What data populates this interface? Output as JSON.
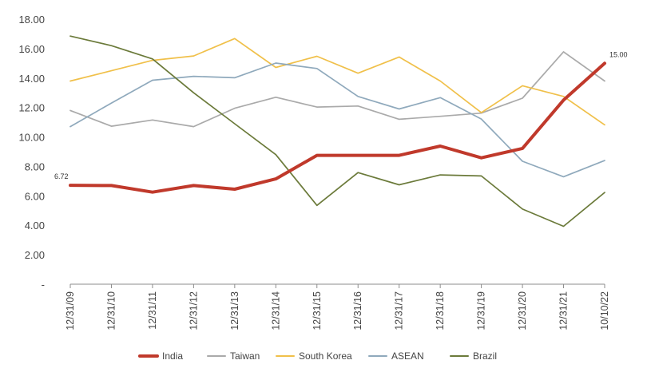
{
  "chart_data": {
    "type": "line",
    "title": "",
    "xlabel": "",
    "ylabel": "",
    "categories": [
      "12/31/09",
      "12/31/10",
      "12/31/11",
      "12/31/12",
      "12/31/13",
      "12/31/14",
      "12/31/15",
      "12/31/16",
      "12/31/17",
      "12/31/18",
      "12/31/19",
      "12/31/20",
      "12/31/21",
      "10/10/22"
    ],
    "y_ticks": [
      "-",
      "2.00",
      "4.00",
      "6.00",
      "8.00",
      "10.00",
      "12.00",
      "14.00",
      "16.00",
      "18.00"
    ],
    "ylim": [
      0,
      18
    ],
    "grid": false,
    "legend_position": "bottom",
    "series": [
      {
        "name": "India",
        "color": "#c0392b",
        "emphasis": true,
        "values": [
          6.72,
          6.7,
          6.25,
          6.7,
          6.45,
          7.15,
          8.75,
          8.75,
          8.75,
          9.38,
          8.58,
          9.22,
          12.5,
          15.0
        ]
      },
      {
        "name": "Taiwan",
        "color": "#aaaaaa",
        "values": [
          11.8,
          10.73,
          11.15,
          10.7,
          11.95,
          12.7,
          12.03,
          12.1,
          11.2,
          11.4,
          11.62,
          12.63,
          15.78,
          13.8
        ]
      },
      {
        "name": "South Korea",
        "color": "#f0c04a",
        "values": [
          13.8,
          14.5,
          15.2,
          15.5,
          16.68,
          14.72,
          15.48,
          14.33,
          15.43,
          13.8,
          11.65,
          13.48,
          12.75,
          10.82
        ]
      },
      {
        "name": "ASEAN",
        "color": "#8fa9bc",
        "values": [
          10.7,
          12.3,
          13.85,
          14.12,
          14.02,
          15.02,
          14.65,
          12.75,
          11.9,
          12.67,
          11.22,
          8.35,
          7.3,
          8.4
        ]
      },
      {
        "name": "Brazil",
        "color": "#6b7a3a",
        "values": [
          16.85,
          16.2,
          15.3,
          13.0,
          10.9,
          8.8,
          5.35,
          7.58,
          6.75,
          7.42,
          7.35,
          5.1,
          3.93,
          6.23
        ]
      }
    ],
    "annotations": [
      {
        "series": "India",
        "index": 0,
        "text": "6.72"
      },
      {
        "series": "India",
        "index": 13,
        "text": "15.00"
      }
    ]
  }
}
